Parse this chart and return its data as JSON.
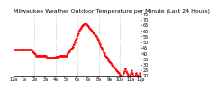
{
  "title": "Milwaukee Weather Outdoor Temperature per Minute (Last 24 Hours)",
  "title_fontsize": 4.5,
  "line_color": "#ff0000",
  "bg_color": "#ffffff",
  "plot_bg_color": "#ffffff",
  "grid_color": "#aaaaaa",
  "ylim": [
    20,
    75
  ],
  "yticks": [
    20,
    25,
    30,
    35,
    40,
    45,
    50,
    55,
    60,
    65,
    70,
    75
  ],
  "ytick_labels": [
    "20",
    "25",
    "30",
    "35",
    "40",
    "45",
    "50",
    "55",
    "60",
    "65",
    "70",
    "75"
  ],
  "y_values": [
    43,
    43,
    43,
    43,
    43,
    43,
    43,
    43,
    43,
    43,
    43,
    43,
    43,
    43,
    43,
    43,
    43,
    43,
    43,
    43,
    43,
    43,
    42,
    41,
    40,
    39,
    38,
    38,
    38,
    38,
    38,
    38,
    38,
    38,
    38,
    38,
    38,
    38,
    36,
    36,
    36,
    36,
    36,
    36,
    36,
    36,
    36,
    36,
    37,
    37,
    37,
    37,
    38,
    38,
    38,
    38,
    38,
    38,
    38,
    38,
    38,
    40,
    41,
    42,
    43,
    44,
    45,
    46,
    48,
    50,
    52,
    54,
    56,
    58,
    60,
    62,
    63,
    64,
    65,
    66,
    67,
    67,
    66,
    65,
    64,
    63,
    62,
    61,
    60,
    59,
    58,
    57,
    56,
    55,
    54,
    52,
    50,
    48,
    46,
    45,
    43,
    41,
    40,
    38,
    37,
    36,
    35,
    34,
    33,
    32,
    31,
    30,
    29,
    28,
    27,
    26,
    25,
    24,
    23,
    22,
    21,
    20,
    19,
    19,
    22,
    24,
    26,
    24,
    22,
    21,
    20,
    19,
    22,
    25,
    22,
    20,
    19,
    19,
    22,
    21,
    20,
    19,
    22,
    20
  ],
  "xtick_positions": [
    0,
    12,
    24,
    36,
    48,
    60,
    72,
    84,
    96,
    108,
    120,
    132,
    143
  ],
  "xtick_labels": [
    "12a",
    "1a",
    "2a",
    "3a",
    "4a",
    "5a",
    "6a",
    "7a",
    "8a",
    "9a",
    "10a",
    "11a",
    "12p"
  ],
  "vgrid_positions": [
    24,
    48,
    72,
    96,
    120
  ],
  "linewidth": 0.8,
  "linestyle": "--",
  "marker": ".",
  "markersize": 1.5,
  "tick_fontsize": 3.5
}
